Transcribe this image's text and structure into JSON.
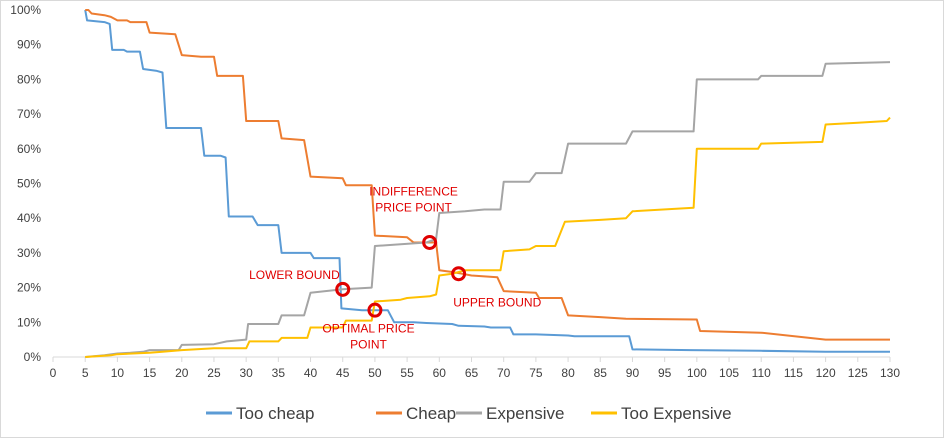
{
  "chart_data": {
    "type": "line",
    "title": "",
    "xlabel": "",
    "ylabel": "",
    "xlim": [
      0,
      130
    ],
    "ylim": [
      0,
      100
    ],
    "x_ticks": [
      0,
      5,
      10,
      15,
      20,
      25,
      30,
      35,
      40,
      45,
      50,
      55,
      60,
      65,
      70,
      75,
      80,
      85,
      90,
      95,
      100,
      105,
      110,
      115,
      120,
      125,
      130
    ],
    "y_ticks": [
      0,
      10,
      20,
      30,
      40,
      50,
      60,
      70,
      80,
      90,
      100
    ],
    "y_tick_suffix": "%",
    "grid": false,
    "legend_position": "bottom",
    "series": [
      {
        "name": "Too cheap",
        "color": "#5b9bd5",
        "points": [
          [
            5,
            100
          ],
          [
            5.3,
            97
          ],
          [
            8,
            96.5
          ],
          [
            8.8,
            96
          ],
          [
            9.2,
            88.5
          ],
          [
            11,
            88.5
          ],
          [
            11.5,
            88
          ],
          [
            13.5,
            88
          ],
          [
            14,
            83
          ],
          [
            16,
            82.5
          ],
          [
            17,
            82
          ],
          [
            17.6,
            66
          ],
          [
            23,
            66
          ],
          [
            23.5,
            58
          ],
          [
            26,
            58
          ],
          [
            26.8,
            57.5
          ],
          [
            27.3,
            40.5
          ],
          [
            31,
            40.5
          ],
          [
            31.8,
            38
          ],
          [
            35,
            38
          ],
          [
            35.5,
            30
          ],
          [
            40,
            30
          ],
          [
            40.5,
            28.5
          ],
          [
            44.5,
            28.5
          ],
          [
            44.8,
            14
          ],
          [
            48,
            13.5
          ],
          [
            52,
            13.5
          ],
          [
            53,
            10
          ],
          [
            56,
            10
          ],
          [
            58,
            9.8
          ],
          [
            62,
            9.5
          ],
          [
            63,
            9
          ],
          [
            67,
            8.8
          ],
          [
            68,
            8.5
          ],
          [
            71,
            8.5
          ],
          [
            71.5,
            6.5
          ],
          [
            75,
            6.5
          ],
          [
            80,
            6.2
          ],
          [
            81,
            6
          ],
          [
            89.5,
            6
          ],
          [
            90,
            2.2
          ],
          [
            99,
            2
          ],
          [
            110,
            1.8
          ],
          [
            120,
            1.5
          ],
          [
            130,
            1.5
          ]
        ]
      },
      {
        "name": "Cheap",
        "color": "#ed7d31",
        "points": [
          [
            5,
            100
          ],
          [
            5.5,
            100
          ],
          [
            6,
            99
          ],
          [
            8,
            98.5
          ],
          [
            9,
            98
          ],
          [
            10,
            97
          ],
          [
            11.5,
            97
          ],
          [
            12,
            96.5
          ],
          [
            14.5,
            96.5
          ],
          [
            15,
            93.5
          ],
          [
            19,
            93
          ],
          [
            20,
            87
          ],
          [
            23,
            86.5
          ],
          [
            25,
            86.5
          ],
          [
            25.5,
            81
          ],
          [
            28,
            81
          ],
          [
            29.5,
            81
          ],
          [
            30,
            68
          ],
          [
            35,
            68
          ],
          [
            35.5,
            63
          ],
          [
            39,
            62.5
          ],
          [
            40,
            52
          ],
          [
            45,
            51.5
          ],
          [
            45.5,
            49.5
          ],
          [
            49.5,
            49.5
          ],
          [
            50,
            35
          ],
          [
            55,
            34.5
          ],
          [
            56,
            33
          ],
          [
            58.5,
            33
          ],
          [
            59.5,
            33
          ],
          [
            60,
            25
          ],
          [
            62,
            24.5
          ],
          [
            63.5,
            24
          ],
          [
            65,
            23.5
          ],
          [
            69,
            23
          ],
          [
            70,
            19
          ],
          [
            75,
            18.5
          ],
          [
            75.5,
            17
          ],
          [
            79,
            17
          ],
          [
            80,
            12
          ],
          [
            85,
            11.5
          ],
          [
            89,
            11
          ],
          [
            100,
            10.8
          ],
          [
            100.5,
            7.5
          ],
          [
            110,
            7
          ],
          [
            120,
            5
          ],
          [
            130,
            5
          ]
        ]
      },
      {
        "name": "Expensive",
        "color": "#a5a5a5",
        "points": [
          [
            5,
            0
          ],
          [
            8,
            0.5
          ],
          [
            10,
            1
          ],
          [
            12,
            1.2
          ],
          [
            14,
            1.5
          ],
          [
            15,
            2
          ],
          [
            19.5,
            2
          ],
          [
            20,
            3.5
          ],
          [
            25,
            3.7
          ],
          [
            27,
            4.5
          ],
          [
            30,
            5
          ],
          [
            30.3,
            9.5
          ],
          [
            35,
            9.5
          ],
          [
            35.5,
            12
          ],
          [
            39,
            12
          ],
          [
            40,
            18.5
          ],
          [
            45,
            19.5
          ],
          [
            49.5,
            20
          ],
          [
            50,
            32
          ],
          [
            54,
            32.5
          ],
          [
            58,
            33
          ],
          [
            59.5,
            34
          ],
          [
            60,
            41.5
          ],
          [
            64,
            42
          ],
          [
            67,
            42.5
          ],
          [
            69.5,
            42.5
          ],
          [
            70,
            50.5
          ],
          [
            74,
            50.5
          ],
          [
            75,
            53
          ],
          [
            79,
            53
          ],
          [
            80,
            61.5
          ],
          [
            89,
            61.5
          ],
          [
            90,
            65
          ],
          [
            99.5,
            65
          ],
          [
            100,
            80
          ],
          [
            109.5,
            80
          ],
          [
            110,
            81
          ],
          [
            119.5,
            81
          ],
          [
            120,
            84.5
          ],
          [
            130,
            85
          ]
        ]
      },
      {
        "name": "Too Expensive",
        "color": "#ffc000",
        "points": [
          [
            5,
            0
          ],
          [
            9,
            0.5
          ],
          [
            10,
            0.8
          ],
          [
            15,
            1.2
          ],
          [
            17,
            1.5
          ],
          [
            20,
            2
          ],
          [
            25,
            2.5
          ],
          [
            30,
            2.5
          ],
          [
            30.5,
            4.5
          ],
          [
            35,
            4.5
          ],
          [
            35.5,
            5.5
          ],
          [
            39.5,
            5.5
          ],
          [
            40,
            8.5
          ],
          [
            45,
            8.5
          ],
          [
            45.5,
            10.5
          ],
          [
            49.5,
            10.5
          ],
          [
            50,
            16
          ],
          [
            54,
            16.5
          ],
          [
            55,
            17
          ],
          [
            58.5,
            17.5
          ],
          [
            59.5,
            18
          ],
          [
            60,
            23.5
          ],
          [
            62,
            24
          ],
          [
            64,
            25
          ],
          [
            69.5,
            25
          ],
          [
            70,
            30.5
          ],
          [
            74,
            31
          ],
          [
            75,
            32
          ],
          [
            78,
            32
          ],
          [
            79.5,
            39
          ],
          [
            85,
            39.5
          ],
          [
            89,
            40
          ],
          [
            90,
            42
          ],
          [
            99.5,
            43
          ],
          [
            100,
            60
          ],
          [
            109.5,
            60
          ],
          [
            110,
            61.5
          ],
          [
            119.5,
            62
          ],
          [
            120,
            67
          ],
          [
            125,
            67.5
          ],
          [
            129.5,
            68
          ],
          [
            130,
            69
          ]
        ]
      }
    ],
    "annotations": [
      {
        "text": "INDIFFERENCE",
        "x": 58.5,
        "y": 33,
        "label_lines": [
          "INDIFFERENCE",
          "PRICE POINT"
        ],
        "label_x": 56,
        "label_y": 46.5
      },
      {
        "text": "LOWER BOUND",
        "x": 45,
        "y": 19.5,
        "label_lines": [
          "LOWER BOUND"
        ],
        "label_x": 37.5,
        "label_y": 22.5
      },
      {
        "text": "OPTIMAL PRICE",
        "x": 50,
        "y": 13.5,
        "label_lines": [
          "OPTIMAL PRICE",
          "POINT"
        ],
        "label_x": 49,
        "label_y": 7
      },
      {
        "text": "UPPER BOUND",
        "x": 63,
        "y": 24,
        "label_lines": [
          "UPPER BOUND"
        ],
        "label_x": 69,
        "label_y": 14.5
      }
    ]
  }
}
